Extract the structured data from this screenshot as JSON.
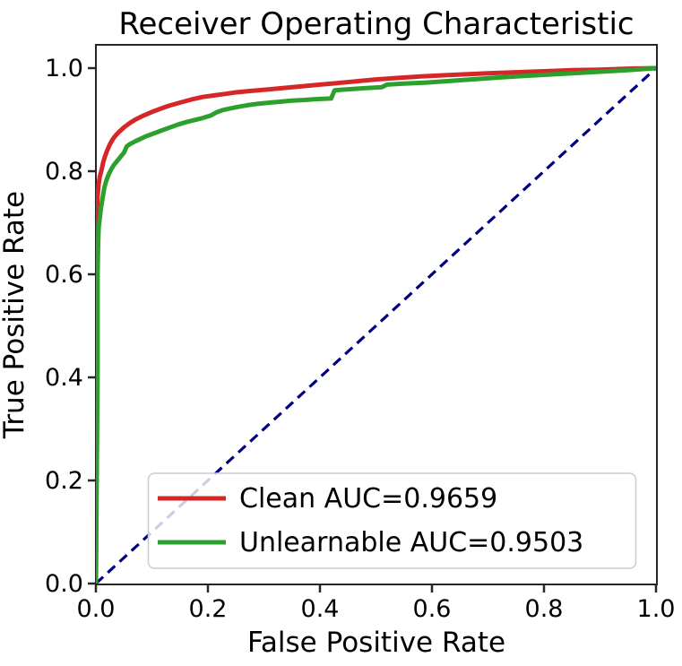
{
  "chart_data": {
    "type": "line",
    "title": "Receiver Operating Characteristic",
    "xlabel": "False Positive Rate",
    "ylabel": "True Positive Rate",
    "xlim": [
      0.0,
      1.0
    ],
    "ylim": [
      0.0,
      1.045
    ],
    "grid": false,
    "axis_color": "#262626",
    "background_color": "#ffffff",
    "xticks": [
      0.0,
      0.2,
      0.4,
      0.6,
      0.8,
      1.0
    ],
    "xtick_labels": [
      "0.0",
      "0.2",
      "0.4",
      "0.6",
      "0.8",
      "1.0"
    ],
    "yticks": [
      0.0,
      0.2,
      0.4,
      0.6,
      0.8,
      1.0
    ],
    "ytick_labels": [
      "0.0",
      "0.2",
      "0.4",
      "0.6",
      "0.8",
      "1.0"
    ],
    "legend": {
      "position": "lower left inside plot",
      "entries": [
        "Clean AUC=0.9659",
        "Unlearnable AUC=0.9503"
      ],
      "background": "rgba(255,255,255,0.8)",
      "border_color": "#cccccc"
    },
    "series": [
      {
        "name": "chance-diagonal",
        "color": "#000080",
        "line_style": "dashed",
        "line_width": 3.2,
        "in_legend": false,
        "points": [
          [
            0.0,
            0.0
          ],
          [
            1.0,
            1.0
          ]
        ]
      },
      {
        "name": "Clean AUC=0.9659",
        "color": "#d62728",
        "line_style": "solid",
        "line_width": 5,
        "in_legend": true,
        "auc": 0.9659,
        "points": [
          [
            0.0,
            0.0
          ],
          [
            0.001,
            0.4
          ],
          [
            0.001,
            0.65
          ],
          [
            0.002,
            0.72
          ],
          [
            0.003,
            0.752
          ],
          [
            0.005,
            0.775
          ],
          [
            0.007,
            0.79
          ],
          [
            0.01,
            0.802
          ],
          [
            0.013,
            0.817
          ],
          [
            0.016,
            0.828
          ],
          [
            0.02,
            0.84
          ],
          [
            0.025,
            0.852
          ],
          [
            0.03,
            0.862
          ],
          [
            0.035,
            0.869
          ],
          [
            0.04,
            0.875
          ],
          [
            0.05,
            0.885
          ],
          [
            0.06,
            0.893
          ],
          [
            0.07,
            0.9
          ],
          [
            0.085,
            0.908
          ],
          [
            0.1,
            0.915
          ],
          [
            0.115,
            0.921
          ],
          [
            0.13,
            0.927
          ],
          [
            0.15,
            0.933
          ],
          [
            0.17,
            0.939
          ],
          [
            0.19,
            0.944
          ],
          [
            0.21,
            0.947
          ],
          [
            0.23,
            0.95
          ],
          [
            0.25,
            0.953
          ],
          [
            0.28,
            0.956
          ],
          [
            0.31,
            0.959
          ],
          [
            0.34,
            0.962
          ],
          [
            0.37,
            0.965
          ],
          [
            0.4,
            0.968
          ],
          [
            0.43,
            0.971
          ],
          [
            0.46,
            0.974
          ],
          [
            0.5,
            0.978
          ],
          [
            0.54,
            0.981
          ],
          [
            0.58,
            0.984
          ],
          [
            0.62,
            0.986
          ],
          [
            0.66,
            0.988
          ],
          [
            0.7,
            0.99
          ],
          [
            0.75,
            0.992
          ],
          [
            0.8,
            0.994
          ],
          [
            0.85,
            0.996
          ],
          [
            0.9,
            0.997
          ],
          [
            0.95,
            0.999
          ],
          [
            1.0,
            1.0
          ]
        ]
      },
      {
        "name": "Unlearnable AUC=0.9503",
        "color": "#2ca02c",
        "line_style": "solid",
        "line_width": 5,
        "in_legend": true,
        "auc": 0.9503,
        "points": [
          [
            0.0,
            0.0
          ],
          [
            0.003,
            0.42
          ],
          [
            0.003,
            0.6
          ],
          [
            0.004,
            0.66
          ],
          [
            0.005,
            0.69
          ],
          [
            0.007,
            0.71
          ],
          [
            0.009,
            0.728
          ],
          [
            0.012,
            0.748
          ],
          [
            0.015,
            0.768
          ],
          [
            0.018,
            0.78
          ],
          [
            0.022,
            0.792
          ],
          [
            0.027,
            0.803
          ],
          [
            0.032,
            0.812
          ],
          [
            0.038,
            0.82
          ],
          [
            0.044,
            0.828
          ],
          [
            0.05,
            0.836
          ],
          [
            0.055,
            0.848
          ],
          [
            0.06,
            0.852
          ],
          [
            0.07,
            0.858
          ],
          [
            0.08,
            0.863
          ],
          [
            0.09,
            0.868
          ],
          [
            0.1,
            0.872
          ],
          [
            0.115,
            0.878
          ],
          [
            0.13,
            0.884
          ],
          [
            0.145,
            0.89
          ],
          [
            0.16,
            0.895
          ],
          [
            0.175,
            0.899
          ],
          [
            0.19,
            0.903
          ],
          [
            0.205,
            0.908
          ],
          [
            0.215,
            0.914
          ],
          [
            0.225,
            0.918
          ],
          [
            0.24,
            0.922
          ],
          [
            0.255,
            0.925
          ],
          [
            0.27,
            0.928
          ],
          [
            0.29,
            0.931
          ],
          [
            0.31,
            0.933
          ],
          [
            0.33,
            0.935
          ],
          [
            0.35,
            0.937
          ],
          [
            0.37,
            0.938
          ],
          [
            0.395,
            0.94
          ],
          [
            0.42,
            0.941
          ],
          [
            0.426,
            0.957
          ],
          [
            0.45,
            0.959
          ],
          [
            0.48,
            0.961
          ],
          [
            0.51,
            0.963
          ],
          [
            0.52,
            0.968
          ],
          [
            0.55,
            0.97
          ],
          [
            0.59,
            0.972
          ],
          [
            0.63,
            0.975
          ],
          [
            0.67,
            0.978
          ],
          [
            0.71,
            0.981
          ],
          [
            0.75,
            0.984
          ],
          [
            0.8,
            0.987
          ],
          [
            0.85,
            0.99
          ],
          [
            0.9,
            0.993
          ],
          [
            0.95,
            0.996
          ],
          [
            1.0,
            1.0
          ]
        ]
      }
    ]
  }
}
